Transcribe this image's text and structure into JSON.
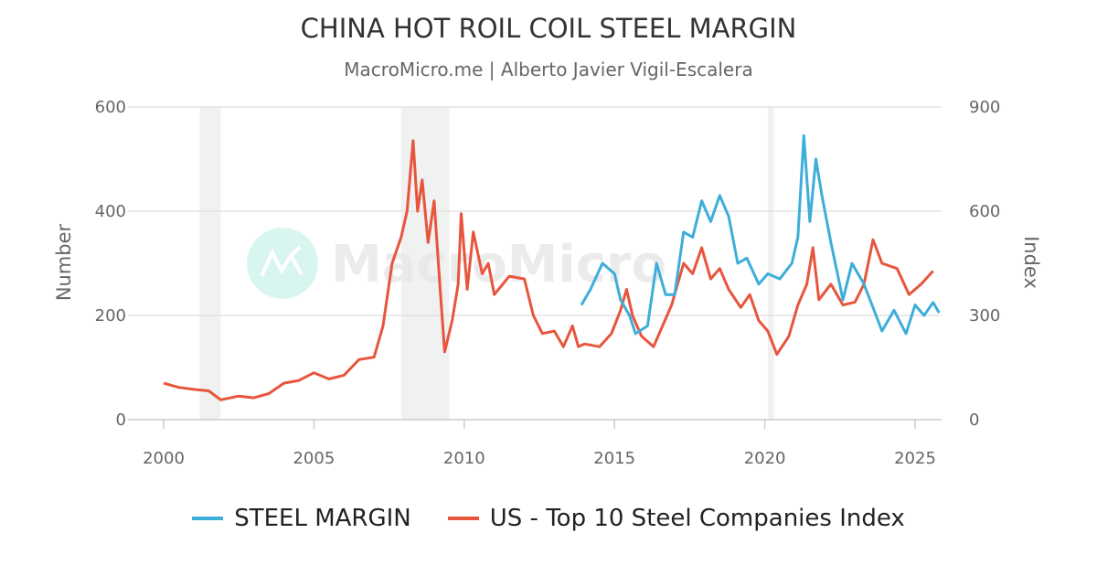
{
  "chart_data": {
    "type": "line",
    "title": "CHINA HOT ROIL COIL STEEL MARGIN",
    "subtitle": "MacroMicro.me | Alberto Javier Vigil-Escalera",
    "watermark": "MacroMicro",
    "xlim": [
      2000,
      2025.9
    ],
    "x_ticks": [
      "2000",
      "2005",
      "2010",
      "2015",
      "2020",
      "2025"
    ],
    "y_left": {
      "label": "Number",
      "lim": [
        0,
        600
      ],
      "ticks": [
        "0",
        "200",
        "400",
        "600"
      ]
    },
    "y_right": {
      "label": "Index",
      "lim": [
        0,
        900
      ],
      "ticks": [
        "0",
        "300",
        "600",
        "900"
      ]
    },
    "grid": true,
    "legend_position": "bottom",
    "recession_bands": [
      [
        2001.2,
        2001.9
      ],
      [
        2007.9,
        2009.5
      ],
      [
        2020.1,
        2020.3
      ]
    ],
    "colors": {
      "band": "#f0f1f1",
      "grid": "#e3e3e3"
    },
    "series": [
      {
        "name": "STEEL MARGIN",
        "axis": "left",
        "color": "#3daed9",
        "points": [
          [
            2013.9,
            220
          ],
          [
            2014.2,
            250
          ],
          [
            2014.6,
            300
          ],
          [
            2015.0,
            280
          ],
          [
            2015.2,
            230
          ],
          [
            2015.5,
            200
          ],
          [
            2015.7,
            165
          ],
          [
            2016.1,
            180
          ],
          [
            2016.4,
            300
          ],
          [
            2016.7,
            240
          ],
          [
            2017.0,
            240
          ],
          [
            2017.3,
            360
          ],
          [
            2017.6,
            350
          ],
          [
            2017.9,
            420
          ],
          [
            2018.2,
            380
          ],
          [
            2018.5,
            430
          ],
          [
            2018.8,
            390
          ],
          [
            2019.1,
            300
          ],
          [
            2019.4,
            310
          ],
          [
            2019.8,
            260
          ],
          [
            2020.1,
            280
          ],
          [
            2020.5,
            270
          ],
          [
            2020.9,
            300
          ],
          [
            2021.1,
            350
          ],
          [
            2021.3,
            545
          ],
          [
            2021.5,
            380
          ],
          [
            2021.7,
            500
          ],
          [
            2021.9,
            430
          ],
          [
            2022.2,
            340
          ],
          [
            2022.6,
            230
          ],
          [
            2022.9,
            300
          ],
          [
            2023.3,
            260
          ],
          [
            2023.7,
            200
          ],
          [
            2023.9,
            170
          ],
          [
            2024.3,
            210
          ],
          [
            2024.7,
            165
          ],
          [
            2025.0,
            220
          ],
          [
            2025.3,
            200
          ],
          [
            2025.6,
            225
          ],
          [
            2025.8,
            205
          ]
        ]
      },
      {
        "name": "US - Top 10 Steel Companies Index",
        "axis": "right",
        "color": "#e8553d",
        "points": [
          [
            2000,
            105
          ],
          [
            2000.5,
            93
          ],
          [
            2001,
            87
          ],
          [
            2001.5,
            83
          ],
          [
            2001.9,
            57
          ],
          [
            2002.5,
            68
          ],
          [
            2003,
            63
          ],
          [
            2003.5,
            75
          ],
          [
            2004,
            105
          ],
          [
            2004.5,
            113
          ],
          [
            2005,
            135
          ],
          [
            2005.5,
            117
          ],
          [
            2006,
            128
          ],
          [
            2006.5,
            173
          ],
          [
            2007,
            180
          ],
          [
            2007.3,
            270
          ],
          [
            2007.6,
            450
          ],
          [
            2007.9,
            525
          ],
          [
            2008.1,
            600
          ],
          [
            2008.3,
            803
          ],
          [
            2008.45,
            600
          ],
          [
            2008.6,
            690
          ],
          [
            2008.8,
            510
          ],
          [
            2009.0,
            630
          ],
          [
            2009.2,
            375
          ],
          [
            2009.35,
            195
          ],
          [
            2009.6,
            285
          ],
          [
            2009.8,
            390
          ],
          [
            2009.9,
            593
          ],
          [
            2010.1,
            375
          ],
          [
            2010.3,
            540
          ],
          [
            2010.6,
            420
          ],
          [
            2010.8,
            450
          ],
          [
            2011,
            360
          ],
          [
            2011.5,
            413
          ],
          [
            2012,
            405
          ],
          [
            2012.3,
            300
          ],
          [
            2012.6,
            248
          ],
          [
            2013,
            255
          ],
          [
            2013.3,
            210
          ],
          [
            2013.6,
            270
          ],
          [
            2013.8,
            210
          ],
          [
            2014,
            218
          ],
          [
            2014.5,
            210
          ],
          [
            2014.9,
            248
          ],
          [
            2015.2,
            315
          ],
          [
            2015.4,
            375
          ],
          [
            2015.6,
            300
          ],
          [
            2015.9,
            240
          ],
          [
            2016.3,
            210
          ],
          [
            2016.6,
            270
          ],
          [
            2016.9,
            330
          ],
          [
            2017.3,
            450
          ],
          [
            2017.6,
            420
          ],
          [
            2017.9,
            495
          ],
          [
            2018.2,
            405
          ],
          [
            2018.5,
            435
          ],
          [
            2018.8,
            375
          ],
          [
            2019.2,
            323
          ],
          [
            2019.5,
            360
          ],
          [
            2019.8,
            285
          ],
          [
            2020.1,
            255
          ],
          [
            2020.4,
            188
          ],
          [
            2020.8,
            240
          ],
          [
            2021.1,
            330
          ],
          [
            2021.4,
            390
          ],
          [
            2021.6,
            495
          ],
          [
            2021.8,
            345
          ],
          [
            2022.2,
            390
          ],
          [
            2022.6,
            330
          ],
          [
            2023.0,
            338
          ],
          [
            2023.3,
            390
          ],
          [
            2023.6,
            518
          ],
          [
            2023.9,
            450
          ],
          [
            2024.4,
            435
          ],
          [
            2024.8,
            360
          ],
          [
            2025.2,
            390
          ],
          [
            2025.6,
            428
          ]
        ]
      }
    ]
  }
}
